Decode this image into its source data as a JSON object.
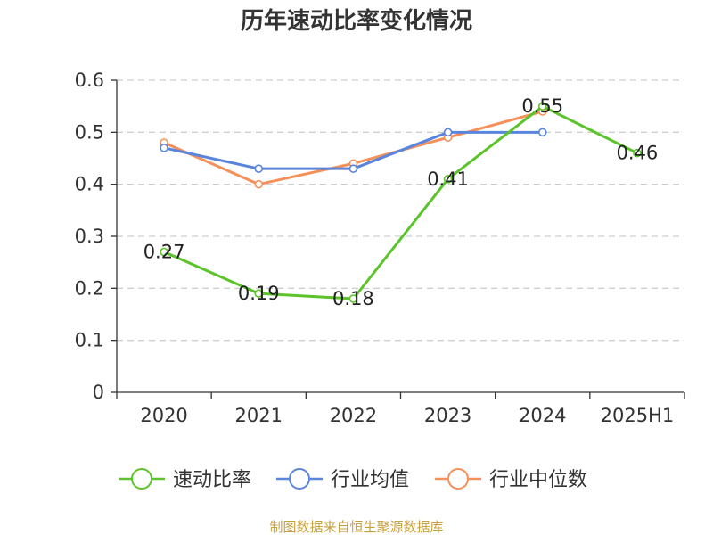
{
  "chart_data": {
    "type": "line",
    "title": "历年速动比率变化情况",
    "xlabel": "",
    "ylabel": "",
    "categories": [
      "2020",
      "2021",
      "2022",
      "2023",
      "2024",
      "2025H1"
    ],
    "ylim": [
      0,
      0.6
    ],
    "yticks": [
      "0",
      "0.1",
      "0.2",
      "0.3",
      "0.4",
      "0.5",
      "0.6"
    ],
    "grid": true,
    "legend_position": "bottom",
    "series": [
      {
        "name": "速动比率",
        "color": "#5cc42a",
        "values": [
          0.27,
          0.19,
          0.18,
          0.41,
          0.55,
          0.46
        ],
        "labels": [
          "0.27",
          "0.19",
          "0.18",
          "0.41",
          "0.55",
          "0.46"
        ]
      },
      {
        "name": "行业均值",
        "color": "#5a85dc",
        "values": [
          0.47,
          0.43,
          0.43,
          0.5,
          0.5,
          null
        ]
      },
      {
        "name": "行业中位数",
        "color": "#f5905a",
        "values": [
          0.48,
          0.4,
          0.44,
          0.49,
          0.54,
          null
        ]
      }
    ],
    "source": "制图数据来自恒生聚源数据库"
  }
}
